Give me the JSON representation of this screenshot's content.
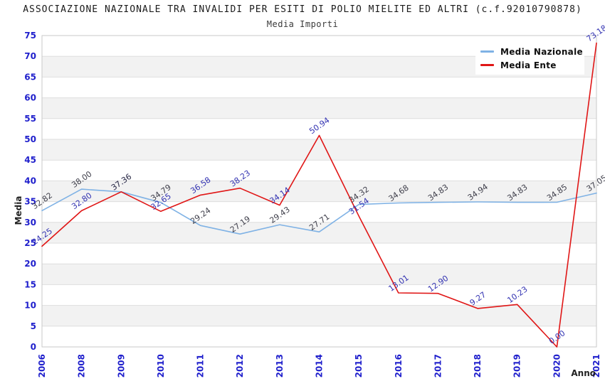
{
  "chart_data": {
    "type": "line",
    "title": "ASSOCIAZIONE NAZIONALE TRA INVALIDI PER ESITI DI POLIO MIELITE ED ALTRI (c.f.92010790878)",
    "subtitle": "Media Importi",
    "xlabel": "Anno",
    "ylabel": "Media",
    "ylim": [
      0,
      75
    ],
    "ytick_step": 5,
    "grid": true,
    "legend_position": "top-right",
    "categories": [
      "2006",
      "2008",
      "2009",
      "2010",
      "2011",
      "2012",
      "2013",
      "2014",
      "2015",
      "2016",
      "2017",
      "2018",
      "2019",
      "2020",
      "2021"
    ],
    "series": [
      {
        "name": "Media Nazionale",
        "color": "#7FB2E5",
        "label_color": "#40404C",
        "values": [
          32.82,
          38.0,
          37.36,
          34.79,
          29.24,
          27.19,
          29.43,
          27.71,
          34.32,
          34.68,
          34.83,
          34.94,
          34.83,
          34.85,
          37.05
        ]
      },
      {
        "name": "Media Ente",
        "color": "#E01616",
        "label_color": "#3333B2",
        "values": [
          24.25,
          32.8,
          37.36,
          32.65,
          36.58,
          38.23,
          34.14,
          50.94,
          31.54,
          13.01,
          12.9,
          9.27,
          10.23,
          0.0,
          73.18
        ]
      }
    ],
    "colors": {
      "tick": "#1F1FCC",
      "grid": "#DEDEDE",
      "border": "#C9C9C9",
      "band": "#FFFFFF",
      "band_alt": "#F2F2F2",
      "axis_title": "#222222",
      "title": "#1B1B1B",
      "subtitle": "#3A3A3A"
    }
  }
}
